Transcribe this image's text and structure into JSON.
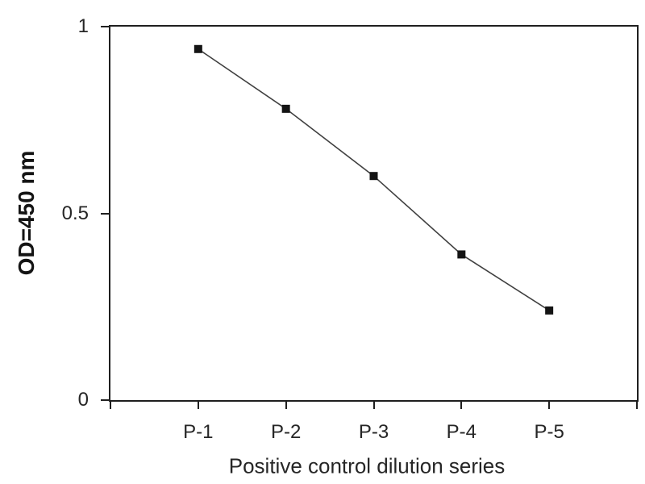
{
  "figure": {
    "background": "#ffffff"
  },
  "chart_data": {
    "type": "line",
    "title": "",
    "categories": [
      "P-1",
      "P-2",
      "P-3",
      "P-4",
      "P-5"
    ],
    "values": [
      0.94,
      0.78,
      0.6,
      0.39,
      0.24
    ],
    "xlabel": "Positive control dilution series",
    "ylabel": "OD=450 nm",
    "ylim": [
      0,
      1
    ],
    "y_ticks": [
      {
        "value": 1,
        "label": "1"
      },
      {
        "value": 0.5,
        "label": "0.5"
      },
      {
        "value": 0,
        "label": "0"
      }
    ],
    "grid": false,
    "legend": "none",
    "marker": "filled-square",
    "line_color": "#404040",
    "marker_color": "#141414",
    "axis_color": "#1f1f1f",
    "text_color": "#262626"
  }
}
